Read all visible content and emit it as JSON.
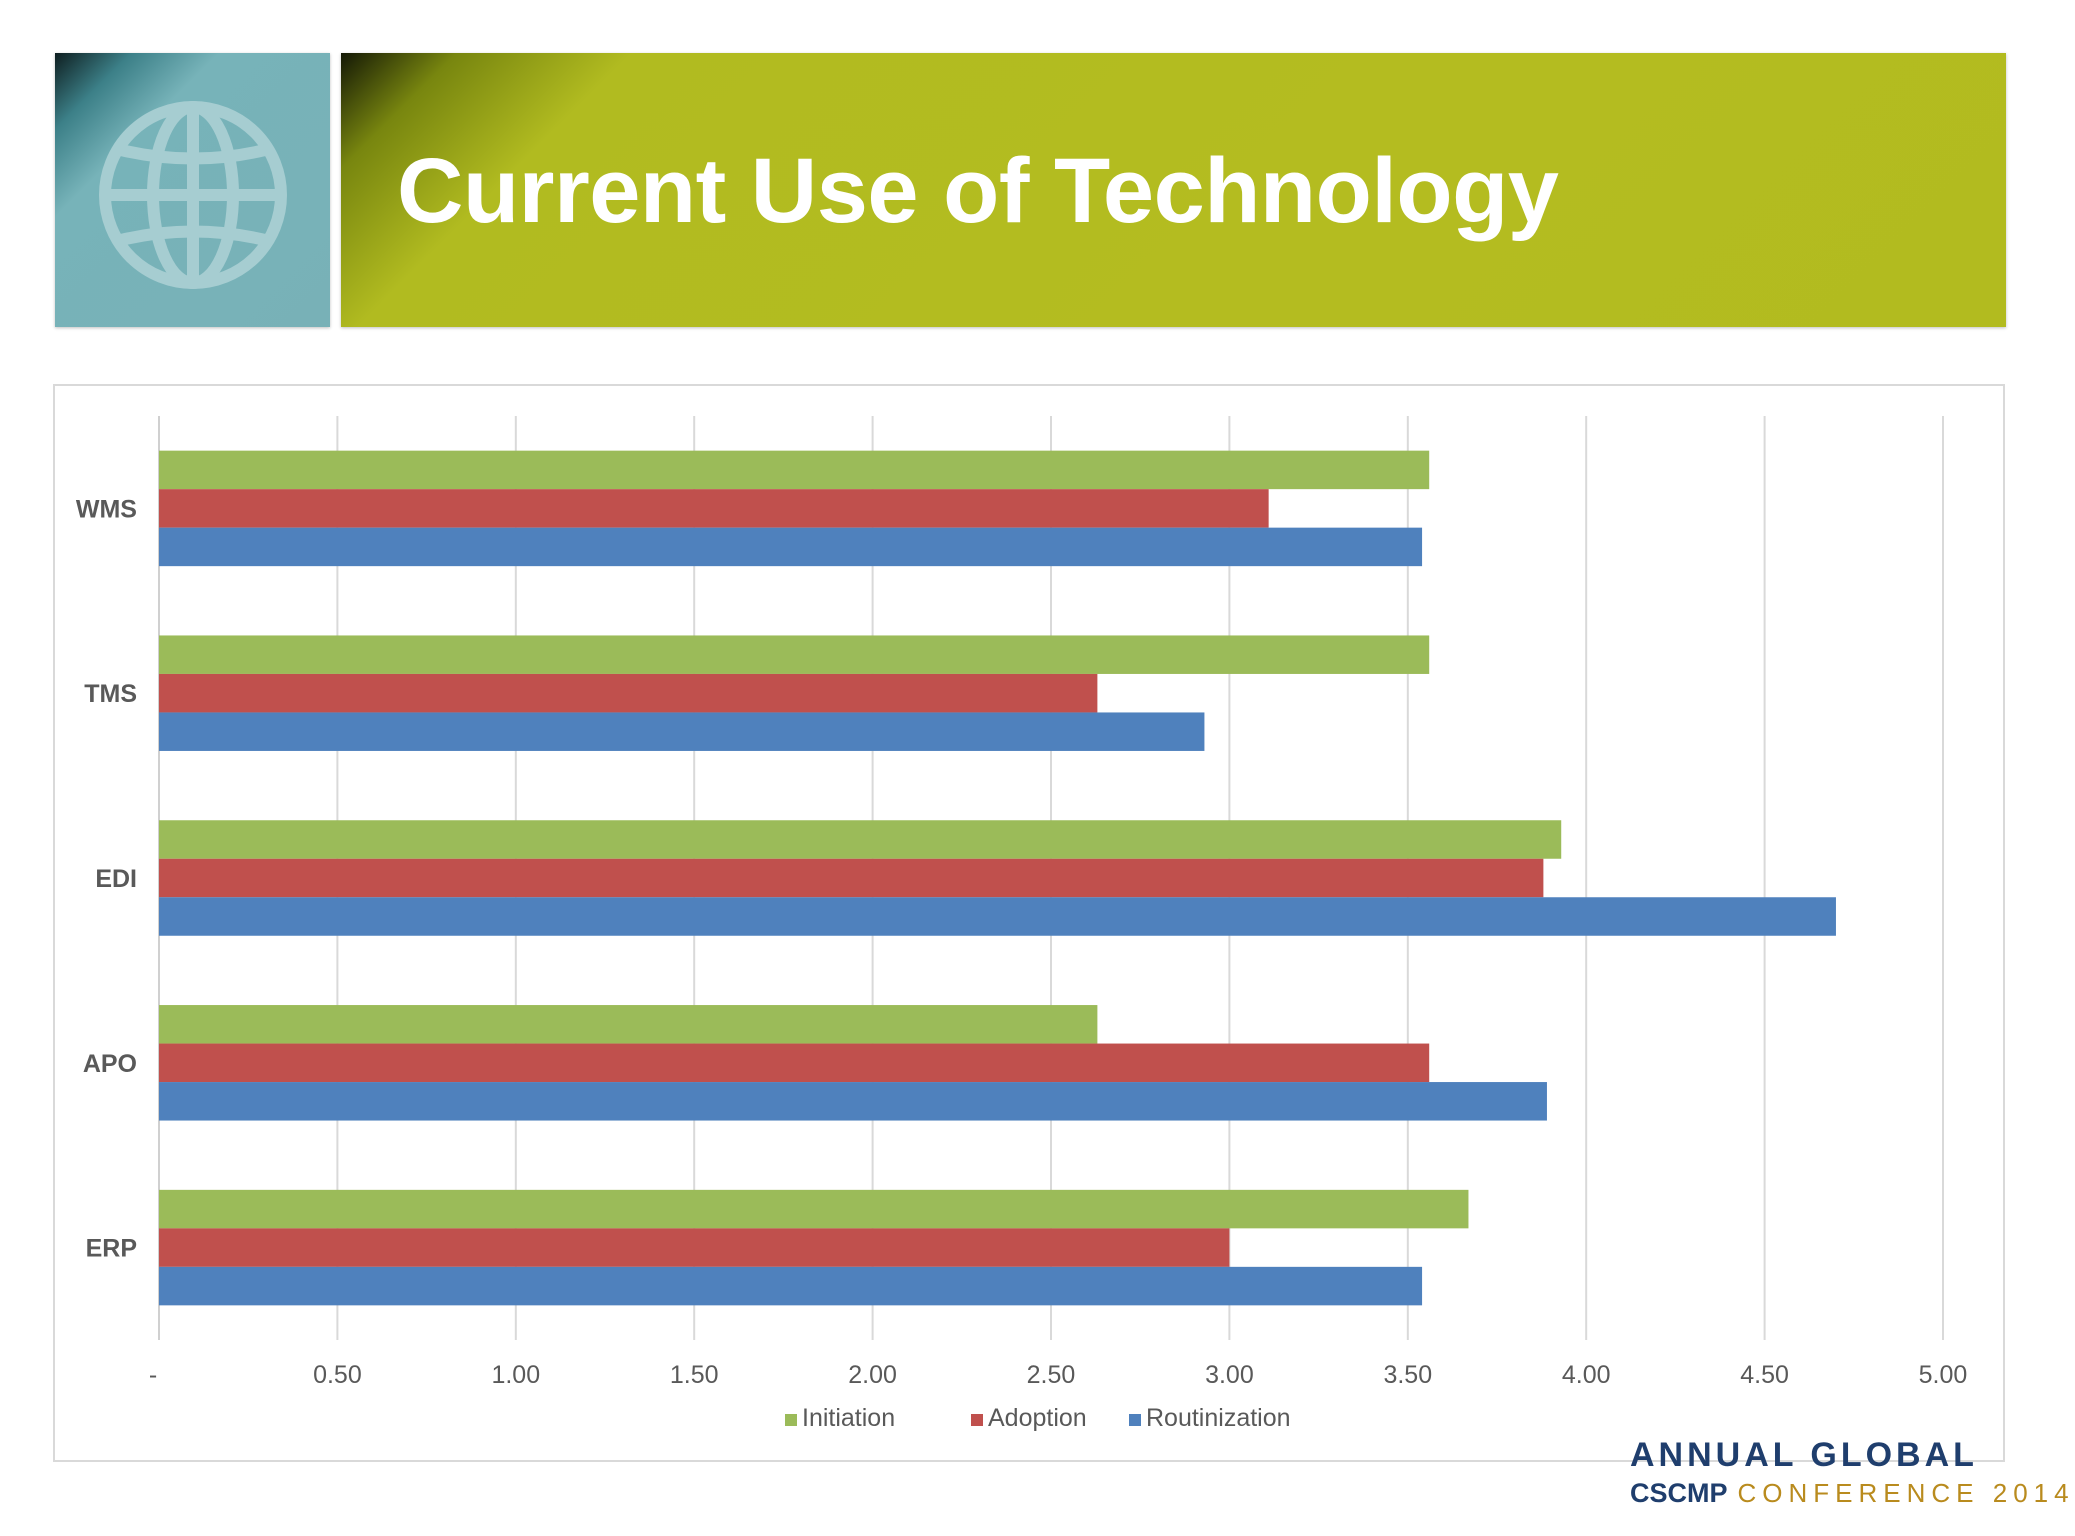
{
  "slide": {
    "title": "Current Use of Technology",
    "icon": "globe-icon",
    "colors": {
      "banner": "#b4bc20",
      "tile": "#78b1b7"
    }
  },
  "footer": {
    "logo_org": "CSCMP",
    "logo_event": "CONFERENCE 2014"
  },
  "chart_data": {
    "type": "bar",
    "orientation": "horizontal",
    "categories": [
      "WMS",
      "TMS",
      "EDI",
      "APO",
      "ERP"
    ],
    "series": [
      {
        "name": "Initiation",
        "color": "#9bbb59",
        "values": [
          3.56,
          3.56,
          3.93,
          2.63,
          3.67
        ]
      },
      {
        "name": "Adoption",
        "color": "#c0504d",
        "values": [
          3.11,
          2.63,
          3.88,
          3.56,
          3.0
        ]
      },
      {
        "name": "Routinization",
        "color": "#4f81bd",
        "values": [
          3.54,
          2.93,
          4.7,
          3.89,
          3.54
        ]
      }
    ],
    "xlim": [
      0,
      5
    ],
    "x_ticks": [
      0,
      0.5,
      1,
      1.5,
      2,
      2.5,
      3,
      3.5,
      4,
      4.5,
      5
    ],
    "x_tick_labels": [
      "-",
      "0.50",
      "1.00",
      "1.50",
      "2.00",
      "2.50",
      "3.00",
      "3.50",
      "4.00",
      "4.50",
      "5.00"
    ],
    "grid": true,
    "legend": "bottom"
  }
}
